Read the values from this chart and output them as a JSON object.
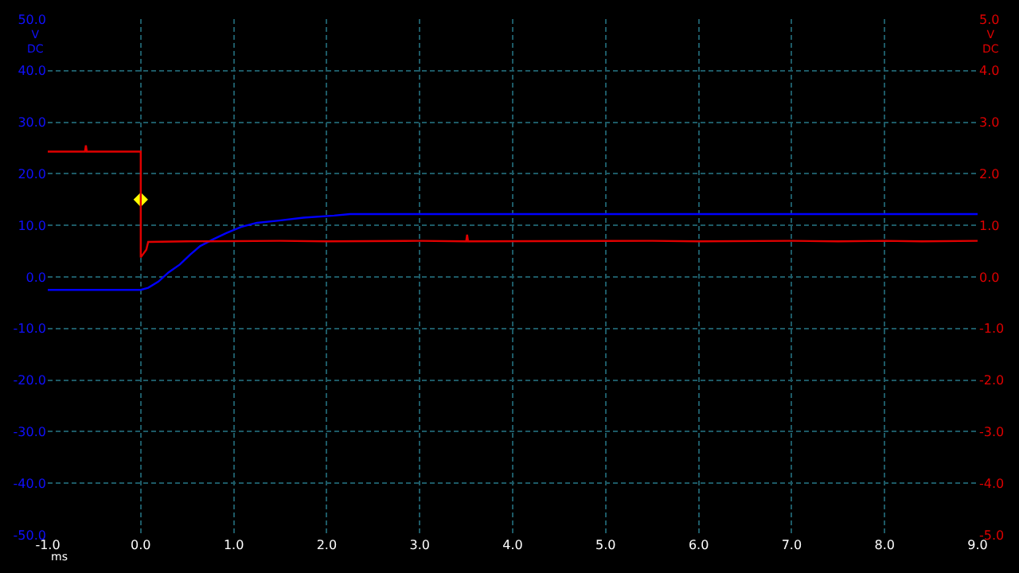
{
  "chart_data": {
    "type": "line",
    "xlabel": "ms",
    "ylabel": "V DC",
    "y2label": "V DC",
    "grid": true,
    "marker": "none",
    "line_style": "solid",
    "xlim": [
      -1.0,
      9.0
    ],
    "xticks": [
      {
        "value": -1,
        "label": "-1.0"
      },
      {
        "value": 0,
        "label": "0.0"
      },
      {
        "value": 1,
        "label": "1.0"
      },
      {
        "value": 2,
        "label": "2.0"
      },
      {
        "value": 3,
        "label": "3.0"
      },
      {
        "value": 4,
        "label": "4.0"
      },
      {
        "value": 5,
        "label": "5.0"
      },
      {
        "value": 6,
        "label": "6.0"
      },
      {
        "value": 7,
        "label": "7.0"
      },
      {
        "value": 8,
        "label": "8.0"
      },
      {
        "value": 9,
        "label": "9.0"
      }
    ],
    "ylim": [
      -50,
      50
    ],
    "yticks": [
      {
        "value": -50,
        "label": "-50.0"
      },
      {
        "value": -40,
        "label": "-40.0"
      },
      {
        "value": -30,
        "label": "-30.0"
      },
      {
        "value": -20,
        "label": "-20.0"
      },
      {
        "value": -10,
        "label": "-10.0"
      },
      {
        "value": 0,
        "label": "0.0"
      },
      {
        "value": 10,
        "label": "10.0"
      },
      {
        "value": 20,
        "label": "20.0"
      },
      {
        "value": 30,
        "label": "30.0"
      },
      {
        "value": 40,
        "label": "40.0"
      },
      {
        "value": 50,
        "label": "50.0"
      }
    ],
    "y2lim": [
      -5,
      5
    ],
    "y2ticks": [
      {
        "value": -5,
        "label": "-5.0"
      },
      {
        "value": -4,
        "label": "-4.0"
      },
      {
        "value": -3,
        "label": "-3.0"
      },
      {
        "value": -2,
        "label": "-2.0"
      },
      {
        "value": -1,
        "label": "-1.0"
      },
      {
        "value": 0,
        "label": "0.0"
      },
      {
        "value": 1,
        "label": "1.0"
      },
      {
        "value": 2,
        "label": "2.0"
      },
      {
        "value": 3,
        "label": "3.0"
      },
      {
        "value": 4,
        "label": "4.0"
      },
      {
        "value": 5,
        "label": "5.0"
      }
    ],
    "series": [
      {
        "color": "#0000ff",
        "x": [
          -1.0,
          -0.5,
          0.0,
          0.08,
          0.19,
          0.3,
          0.42,
          0.53,
          0.64,
          0.78,
          0.92,
          1.08,
          1.25,
          1.47,
          1.75,
          2.08,
          2.25,
          3.0,
          5.0,
          7.0,
          9.0
        ],
        "values": [
          -2.5,
          -2.5,
          -2.5,
          -2.1,
          -0.9,
          0.9,
          2.4,
          4.3,
          6.0,
          7.3,
          8.5,
          9.7,
          10.5,
          10.9,
          11.5,
          11.9,
          12.2,
          12.2,
          12.2,
          12.2,
          12.2
        ]
      },
      {
        "color": "#e00000",
        "axis": "y2",
        "x": [
          -1.0,
          -0.6,
          -0.59,
          -0.58,
          0.0,
          0.0,
          0.06,
          0.08,
          0.5,
          1.5,
          2.0,
          3.0,
          3.5,
          3.51,
          3.52,
          5.5,
          6.0,
          7.0,
          7.5,
          8.0,
          8.4,
          9.0
        ],
        "values": [
          2.43,
          2.43,
          2.55,
          2.43,
          2.43,
          0.38,
          0.53,
          0.68,
          0.69,
          0.7,
          0.69,
          0.7,
          0.69,
          0.82,
          0.69,
          0.7,
          0.69,
          0.7,
          0.69,
          0.7,
          0.69,
          0.7
        ]
      },
      {
        "type": "scatter",
        "color": "#ffff00",
        "marker": "diamond",
        "x": [
          0.0
        ],
        "values": [
          15
        ]
      }
    ]
  }
}
